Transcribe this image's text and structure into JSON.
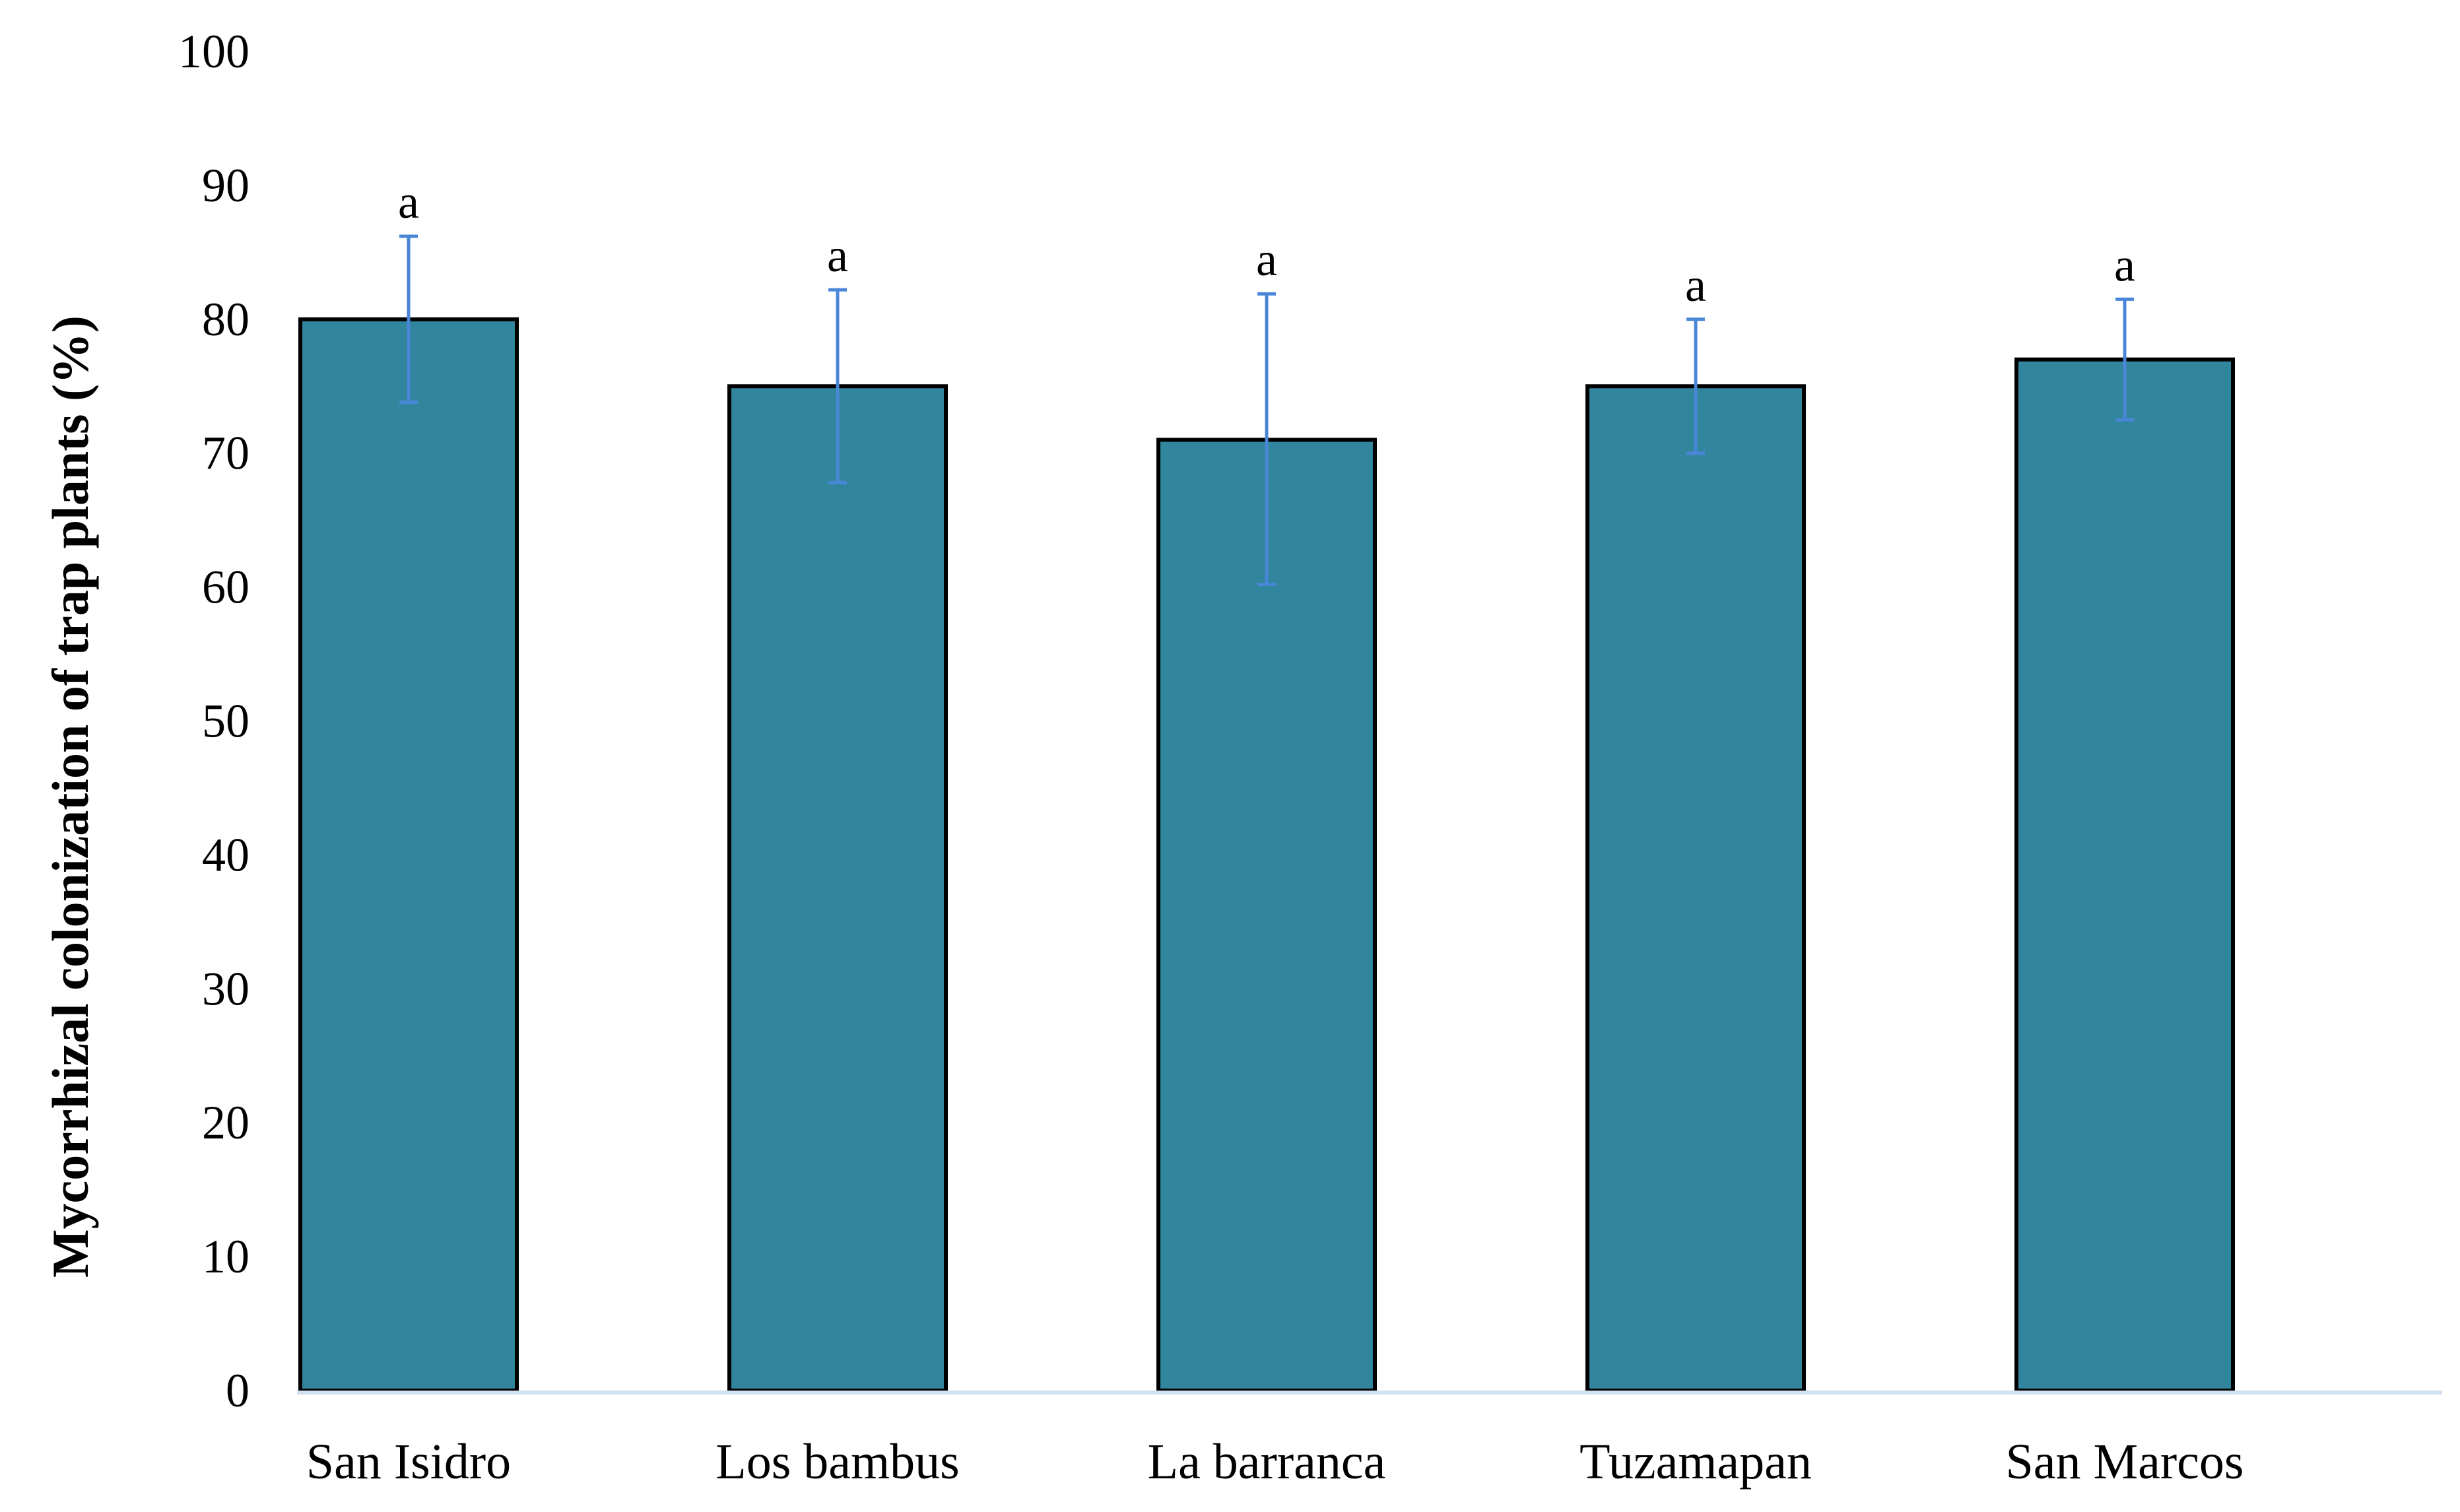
{
  "chart_data": {
    "type": "bar",
    "title": "",
    "xlabel": "",
    "ylabel": "Mycorrhizal colonization of trap plants (%)",
    "ylim": [
      0,
      100
    ],
    "yticks": [
      0,
      10,
      20,
      30,
      40,
      50,
      60,
      70,
      80,
      90,
      100
    ],
    "grid": false,
    "legend": "none",
    "categories": [
      "San Isidro",
      "Los bambus",
      "La barranca",
      "Tuzamapan",
      "San Marcos"
    ],
    "values": [
      80,
      75,
      71,
      75,
      77
    ],
    "error_upper": [
      86.2,
      82.2,
      81.9,
      80.0,
      81.5
    ],
    "error_lower": [
      73.8,
      67.8,
      60.2,
      70.0,
      72.5
    ],
    "significance_labels": [
      "a",
      "a",
      "a",
      "a",
      "a"
    ],
    "colors": {
      "bar_fill": "#31859c",
      "bar_stroke": "#000000",
      "error_bar": "#4a86d8",
      "x_axis": "#d0e0ee"
    }
  }
}
